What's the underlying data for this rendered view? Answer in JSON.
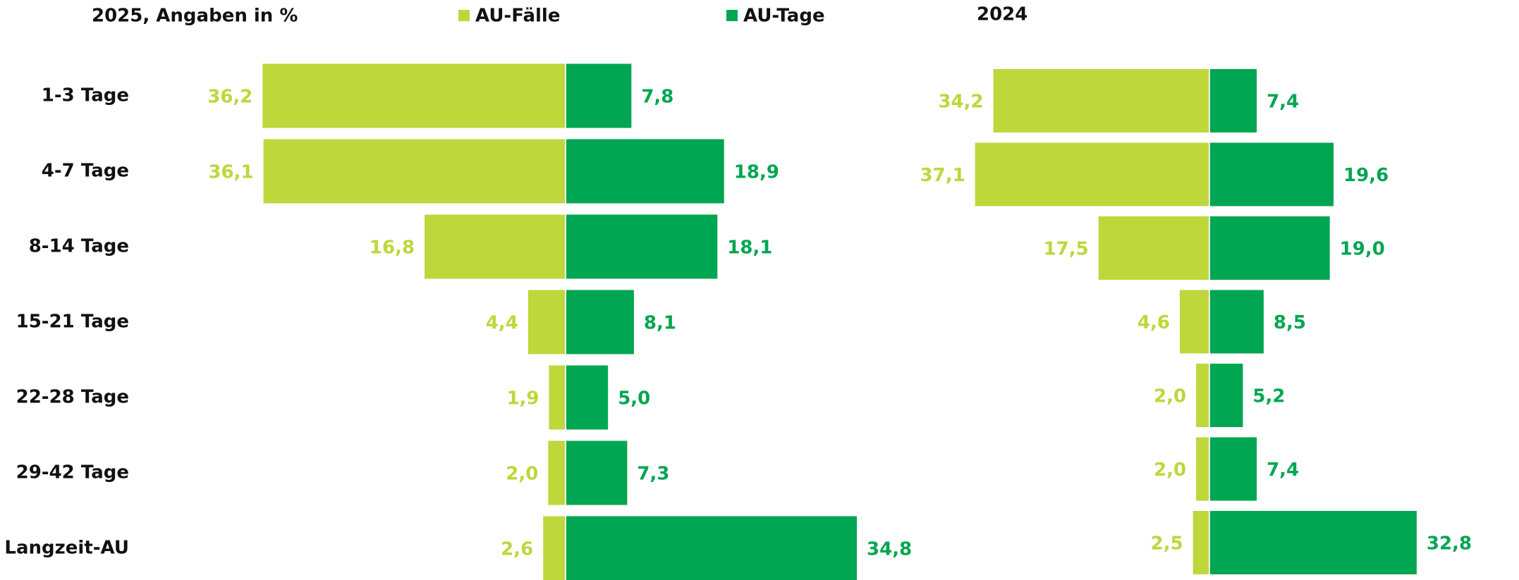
{
  "chart_data": [
    {
      "type": "butterfly",
      "title": "2025, Angaben in %",
      "categories": [
        "1-3 Tage",
        "4-7 Tage",
        "8-14 Tage",
        "15-21 Tage",
        "22-28 Tage",
        "29-42 Tage",
        "Langzeit-AU"
      ],
      "series": [
        {
          "name": "AU-Fälle",
          "color": "#bed73b",
          "values": [
            36.2,
            36.1,
            16.8,
            4.4,
            1.9,
            2.0,
            2.6
          ],
          "value_labels": [
            "36,2",
            "36,1",
            "16,8",
            "4,4",
            "1,9",
            "2,0",
            "2,6"
          ]
        },
        {
          "name": "AU-Tage",
          "color": "#00a651",
          "values": [
            7.8,
            18.9,
            18.1,
            8.1,
            5.0,
            7.3,
            34.8
          ],
          "value_labels": [
            "7,8",
            "18,9",
            "18,1",
            "8,1",
            "5,0",
            "7,3",
            "34,8"
          ]
        }
      ]
    },
    {
      "type": "butterfly",
      "title": "2024",
      "series": [
        {
          "color": "#bed73b",
          "values": [
            34.2,
            37.1,
            17.5,
            4.6,
            2.0,
            2.0,
            2.5
          ],
          "value_labels": [
            "34,2",
            "37,1",
            "17,5",
            "4,6",
            "2,0",
            "2,0",
            "2,5"
          ]
        },
        {
          "color": "#00a651",
          "values": [
            7.4,
            19.6,
            19.0,
            8.5,
            5.2,
            7.4,
            32.8
          ],
          "value_labels": [
            "7,4",
            "19,6",
            "19,0",
            "8,5",
            "5,2",
            "7,4",
            "32,8"
          ]
        }
      ]
    }
  ]
}
